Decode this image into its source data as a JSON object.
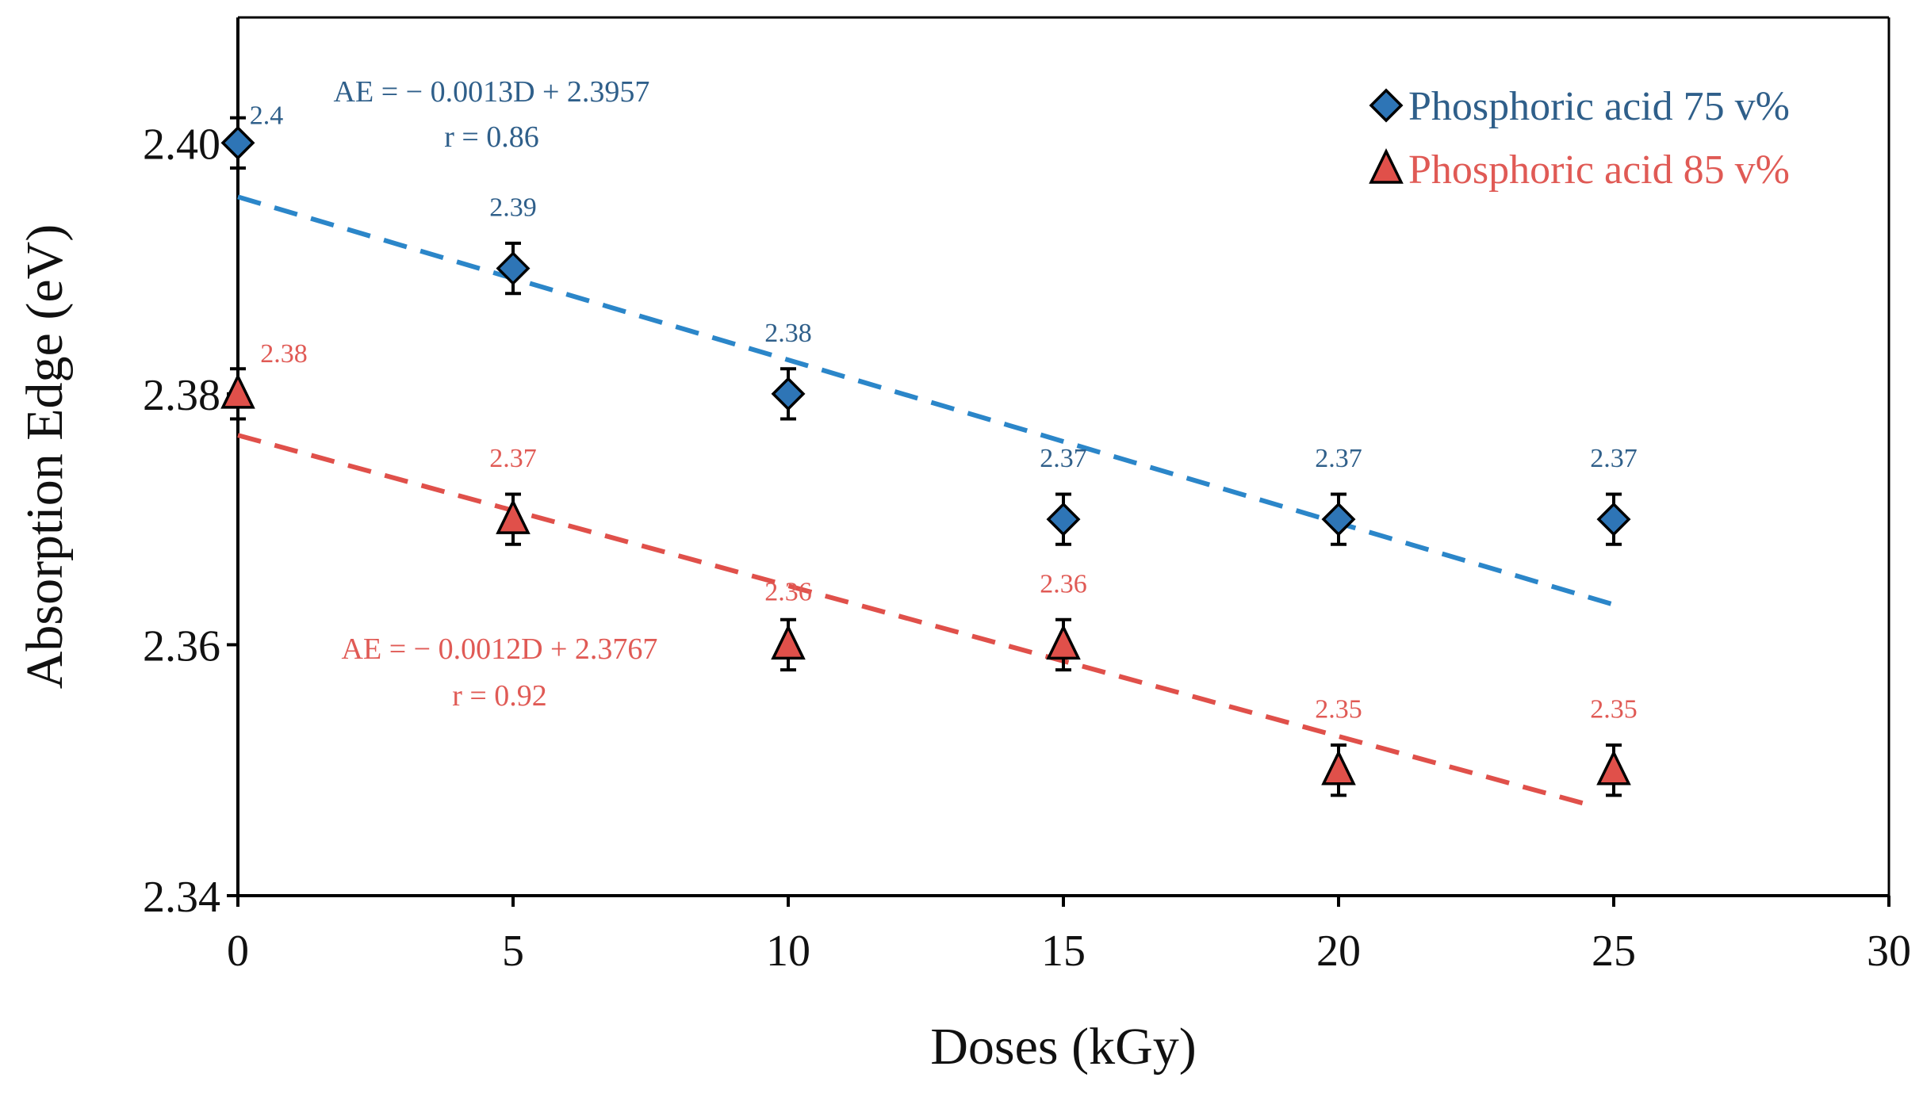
{
  "chart_data": {
    "type": "scatter",
    "title": "",
    "xlabel": "Doses (kGy)",
    "ylabel": "Absorption Edge (eV)",
    "xlim": [
      0,
      30
    ],
    "ylim": [
      2.34,
      2.41
    ],
    "x_ticks": [
      0,
      5,
      10,
      15,
      20,
      25,
      30
    ],
    "x_tick_labels": [
      "0",
      "5",
      "10",
      "15",
      "20",
      "25",
      "30"
    ],
    "y_ticks": [
      2.34,
      2.36,
      2.38,
      2.4
    ],
    "y_tick_labels": [
      "2.34",
      "2.36",
      "2.38",
      "2.40"
    ],
    "grid": false,
    "legend_position": "top-right",
    "error_bar": 0.002,
    "series": [
      {
        "name": "Phosphoric acid 75 v%",
        "marker": "diamond",
        "color": "#2e75b6",
        "label_color": "#2f5f8a",
        "line_color": "#2b86c9",
        "x": [
          0,
          5,
          10,
          15,
          20,
          25
        ],
        "values": [
          2.4,
          2.39,
          2.38,
          2.37,
          2.37,
          2.37
        ],
        "labels": [
          "2.4",
          "2.39",
          "2.38",
          "2.37",
          "2.37",
          "2.37"
        ],
        "trend": {
          "slope": -0.0013,
          "intercept": 2.3957,
          "x_range": [
            0,
            25
          ]
        },
        "equation": "AE = − 0.0013D + 2.3957",
        "r_text": "r = 0.86"
      },
      {
        "name": "Phosphoric acid 85 v%",
        "marker": "triangle",
        "color": "#e0504a",
        "label_color": "#e05a55",
        "line_color": "#e0504a",
        "x": [
          0,
          5,
          10,
          15,
          20,
          25
        ],
        "values": [
          2.38,
          2.37,
          2.36,
          2.36,
          2.35,
          2.35
        ],
        "labels": [
          "2.38",
          "2.37",
          "2.36",
          "2.36",
          "2.35",
          "2.35"
        ],
        "trend": {
          "slope": -0.0012,
          "intercept": 2.3767,
          "x_range": [
            0,
            24.6
          ]
        },
        "equation": "AE = − 0.0012D + 2.3767",
        "r_text": "r = 0.92"
      }
    ]
  }
}
